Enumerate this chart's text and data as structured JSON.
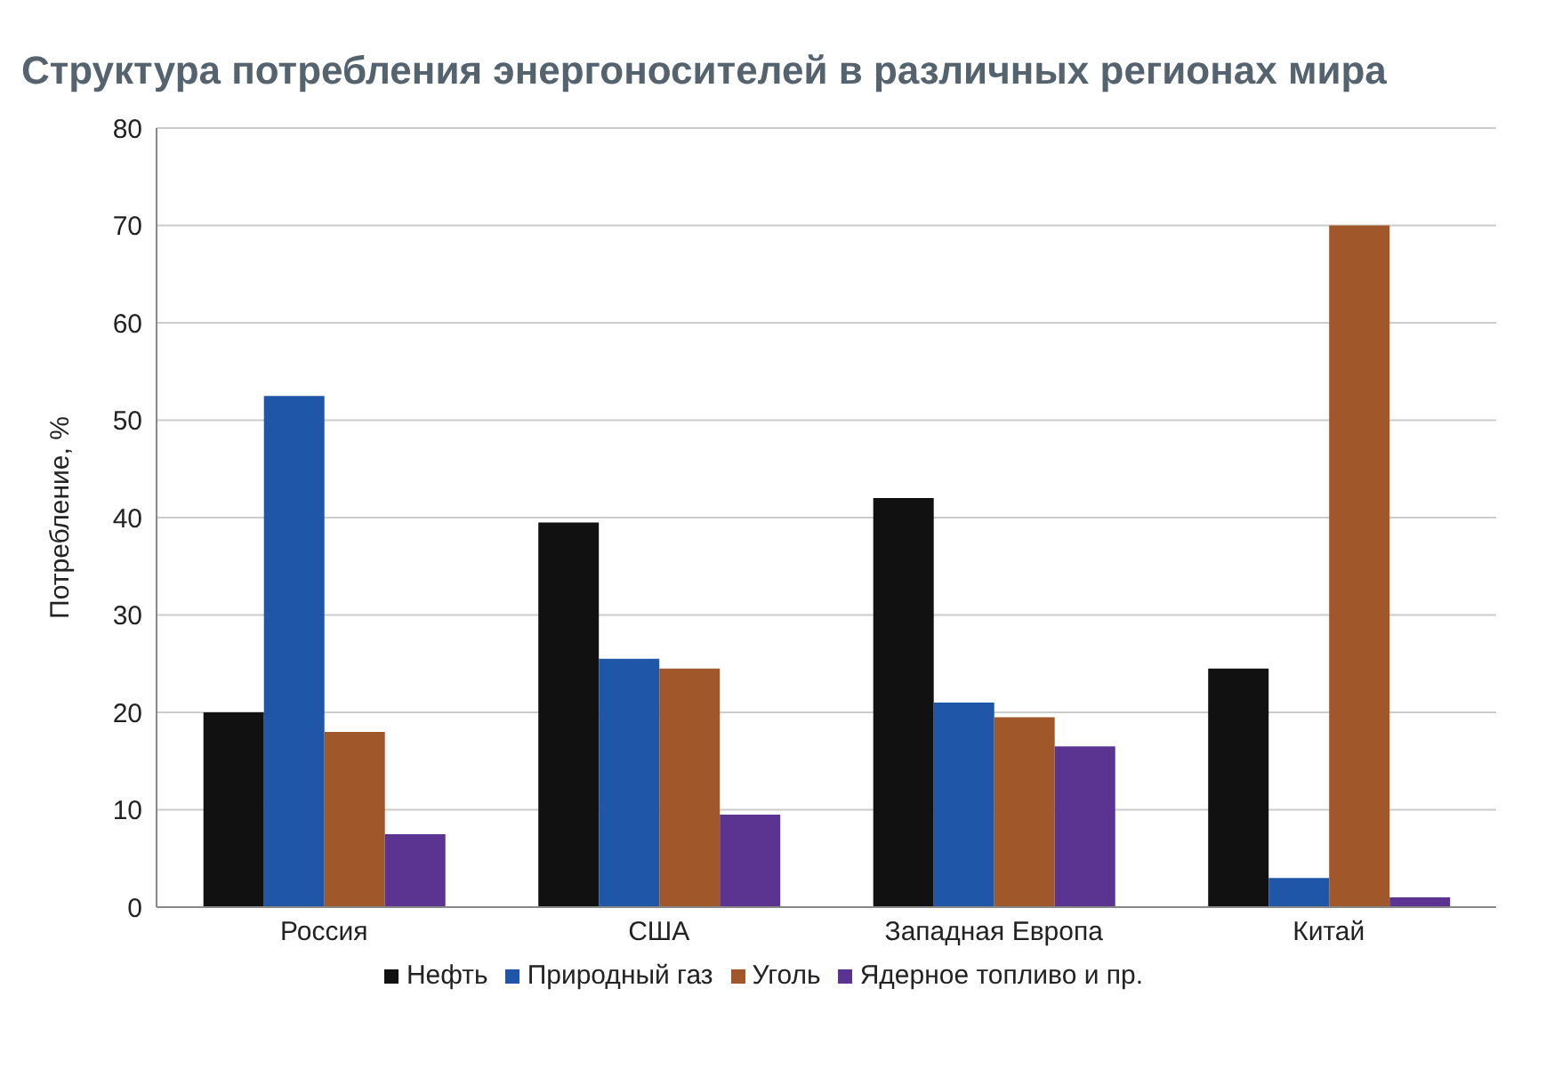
{
  "chart_data": {
    "type": "bar",
    "title": "Структура потребления энергоносителей в различных регионах мира",
    "ylabel": "Потребление, %",
    "categories": [
      "Россия",
      "США",
      "Западная Европа",
      "Китай"
    ],
    "series": [
      {
        "name": "Нефть",
        "color": "#111111",
        "values": [
          20,
          39.5,
          42,
          24.5
        ]
      },
      {
        "name": "Природный газ",
        "color": "#1f56a8",
        "values": [
          52.5,
          25.5,
          21,
          3
        ]
      },
      {
        "name": "Уголь",
        "color": "#a0582a",
        "values": [
          18,
          24.5,
          19.5,
          70
        ]
      },
      {
        "name": "Ядерное топливо и пр.",
        "color": "#5b3491",
        "values": [
          7.5,
          9.5,
          16.5,
          1
        ]
      }
    ],
    "ylim": [
      0,
      80
    ],
    "yticks": [
      0,
      10,
      20,
      30,
      40,
      50,
      60,
      70,
      80
    ],
    "grid": "y",
    "legend": "bottom"
  }
}
